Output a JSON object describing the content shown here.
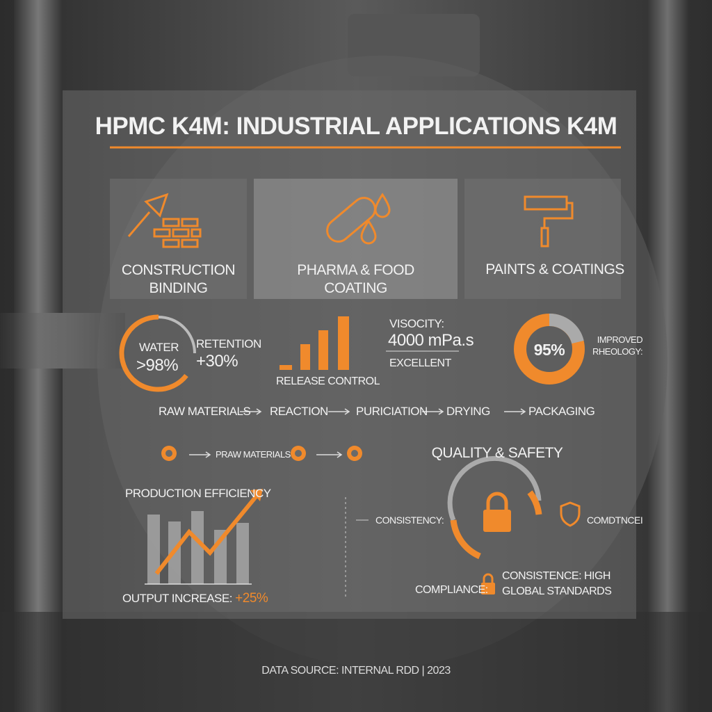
{
  "header": {
    "title": "HPMC K4M: INDUSTRIAL APPLICATIONS K4M"
  },
  "applications": [
    {
      "label_lines": [
        "CONSTRUCTION",
        "BINDING"
      ]
    },
    {
      "label_lines": [
        "PHARMA & FOOD",
        "COATING"
      ]
    },
    {
      "label_lines": [
        "PAINTS & COATINGS"
      ]
    }
  ],
  "metrics": {
    "water": {
      "label": "WATER",
      "value": ">98%",
      "side_label": "RETENTION",
      "side_value": "+30%"
    },
    "release": {
      "label": "RELEASE CONTROL"
    },
    "viscosity": {
      "label": "VISOCITY:",
      "value": "4000 mPa.s",
      "rating": "EXCELLENT"
    },
    "rheology": {
      "value": "95%",
      "label_lines": [
        "IMPROVED",
        "RHEOLOGY:"
      ]
    }
  },
  "process": {
    "steps": [
      "RAW MATERIALS",
      "REACTION",
      "PURICIATION",
      "DRYING",
      "PACKAGING"
    ],
    "sub_step": "PRAW MATERIALS"
  },
  "production": {
    "title": "PRODUCTION EFFICIENCY",
    "output_label": "OUTPUT INCREASE:",
    "output_value": "+25%"
  },
  "quality": {
    "title": "QUALITY & SAFETY",
    "consistency": "CONSISTENCY:",
    "badge": "COMDTNCEI",
    "compliance": "COMPLIANCE:",
    "standards_lines": [
      "CONSISTENCE: HIGH",
      "GLOBAL STANDARDS"
    ]
  },
  "footer": {
    "source": "DATA SOURCE: INTERNAL RDD | 2023"
  }
}
